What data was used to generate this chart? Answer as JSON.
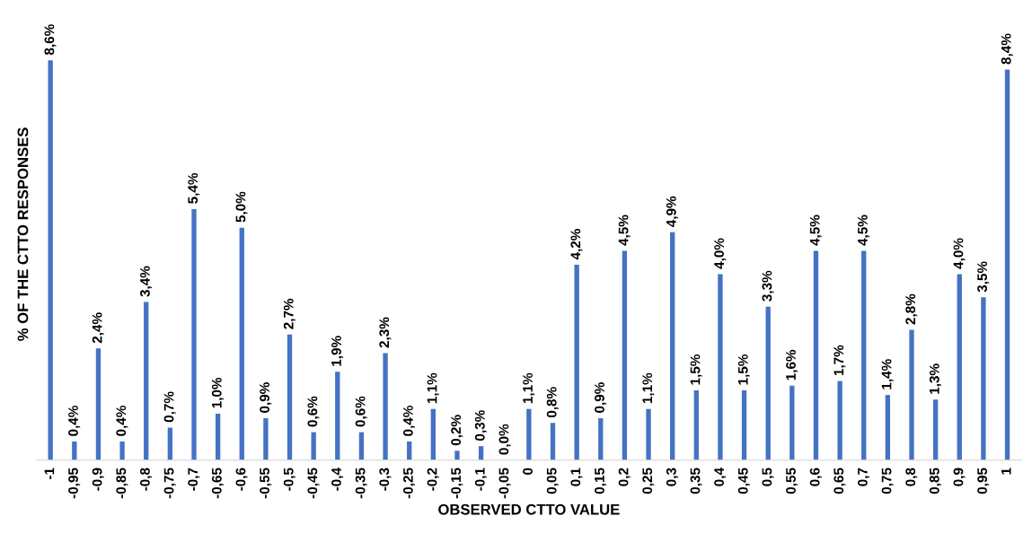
{
  "chart_data": {
    "type": "bar",
    "xlabel": "OBSERVED CTTO VALUE",
    "ylabel": "% OF THE CTTO RESPONSES",
    "categories": [
      "-1",
      "-0,95",
      "-0,9",
      "-0,85",
      "-0,8",
      "-0,75",
      "-0,7",
      "-0,65",
      "-0,6",
      "-0,55",
      "-0,5",
      "-0,45",
      "-0,4",
      "-0,35",
      "-0,3",
      "-0,25",
      "-0,2",
      "-0,15",
      "-0,1",
      "-0,05",
      "0",
      "0,05",
      "0,1",
      "0,15",
      "0,2",
      "0,25",
      "0,3",
      "0,35",
      "0,4",
      "0,45",
      "0,5",
      "0,55",
      "0,6",
      "0,65",
      "0,7",
      "0,75",
      "0,8",
      "0,85",
      "0,9",
      "0,95",
      "1"
    ],
    "values": [
      8.6,
      0.4,
      2.4,
      0.4,
      3.4,
      0.7,
      5.4,
      1.0,
      5.0,
      0.9,
      2.7,
      0.6,
      1.9,
      0.6,
      2.3,
      0.4,
      1.1,
      0.2,
      0.3,
      0.0,
      1.1,
      0.8,
      4.2,
      0.9,
      4.5,
      1.1,
      4.9,
      1.5,
      4.0,
      1.5,
      3.3,
      1.6,
      4.5,
      1.7,
      4.5,
      1.4,
      2.8,
      1.3,
      4.0,
      3.5,
      8.4
    ],
    "value_labels": [
      "8,6%",
      "0,4%",
      "2,4%",
      "0,4%",
      "3,4%",
      "0,7%",
      "5,4%",
      "1,0%",
      "5,0%",
      "0,9%",
      "2,7%",
      "0,6%",
      "1,9%",
      "0,6%",
      "2,3%",
      "0,4%",
      "1,1%",
      "0,2%",
      "0,3%",
      "0,0%",
      "1,1%",
      "0,8%",
      "4,2%",
      "0,9%",
      "4,5%",
      "1,1%",
      "4,9%",
      "1,5%",
      "4,0%",
      "1,5%",
      "3,3%",
      "1,6%",
      "4,5%",
      "1,7%",
      "4,5%",
      "1,4%",
      "2,8%",
      "1,3%",
      "4,0%",
      "3,5%",
      "8,4%"
    ],
    "color": "#4472c4",
    "grid": false,
    "legend": false
  }
}
